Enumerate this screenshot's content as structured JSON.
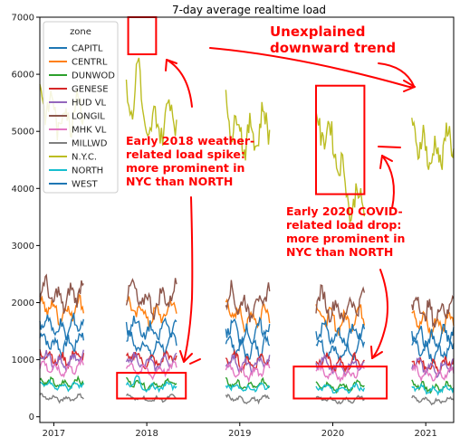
{
  "chart_data": {
    "type": "line",
    "title": "7-day average realtime load",
    "xlabel": "",
    "ylabel": "",
    "ylim": [
      -100,
      7000
    ],
    "xlim": [
      2016.85,
      2021.3
    ],
    "yticks": [
      0,
      1000,
      2000,
      3000,
      4000,
      5000,
      6000,
      7000
    ],
    "xticks": [
      2017,
      2018,
      2019,
      2020,
      2021
    ],
    "xtick_labels": [
      "2017",
      "2018",
      "2019",
      "2020",
      "2021"
    ],
    "grid": false,
    "legend": {
      "title": "zone",
      "position": "top-left"
    },
    "segments": [
      {
        "start": 2016.85,
        "end": 2017.32
      },
      {
        "start": 2017.78,
        "end": 2018.32
      },
      {
        "start": 2018.85,
        "end": 2019.32
      },
      {
        "start": 2019.82,
        "end": 2020.34
      },
      {
        "start": 2020.85,
        "end": 2021.3
      }
    ],
    "series": [
      {
        "name": "CAPITL",
        "color": "#1f77b4",
        "level": 1300,
        "amp": 190
      },
      {
        "name": "CENTRL",
        "color": "#ff7f0e",
        "level": 1900,
        "amp": 230
      },
      {
        "name": "DUNWOD",
        "color": "#2ca02c",
        "level": 600,
        "amp": 90
      },
      {
        "name": "GENESE",
        "color": "#d62728",
        "level": 1050,
        "amp": 150
      },
      {
        "name": "HUD VL",
        "color": "#9467bd",
        "level": 1000,
        "amp": 140
      },
      {
        "name": "LONGIL",
        "color": "#8c564b",
        "level": 2150,
        "amp": 280
      },
      {
        "name": "MHK VL",
        "color": "#e377c2",
        "level": 850,
        "amp": 120
      },
      {
        "name": "MILLWD",
        "color": "#7f7f7f",
        "level": 330,
        "amp": 60
      },
      {
        "name": "N.Y.C.",
        "color": "#bcbd22",
        "level": 5400,
        "amp": 450
      },
      {
        "name": "NORTH",
        "color": "#17becf",
        "level": 550,
        "amp": 80
      },
      {
        "name": "WEST",
        "color": "#1f77b4",
        "level": 1600,
        "amp": 220
      }
    ],
    "highlights": [
      {
        "label": "2018 spike",
        "x": [
          2017.8,
          2018.1
        ],
        "y": [
          6350,
          7000
        ]
      },
      {
        "label": "2018 NORTH",
        "x": [
          2017.68,
          2018.42
        ],
        "y": [
          320,
          770
        ]
      },
      {
        "label": "2020 drop",
        "x": [
          2019.82,
          2020.34
        ],
        "y": [
          3900,
          5800
        ]
      },
      {
        "label": "2020 NORTH",
        "x": [
          2019.58,
          2020.58
        ],
        "y": [
          320,
          880
        ]
      }
    ]
  },
  "annotations": {
    "trend_line1": "Unexplained",
    "trend_line2": "downward trend",
    "spike_line1": "Early 2018 weather-",
    "spike_line2": "related load spike:",
    "spike_line3": "more prominent in",
    "spike_line4": "NYC than NORTH",
    "covid_line1": "Early 2020 COVID-",
    "covid_line2": "related load drop:",
    "covid_line3": "more prominent in",
    "covid_line4": "NYC than NORTH"
  },
  "annotation_color": "#ff0000"
}
